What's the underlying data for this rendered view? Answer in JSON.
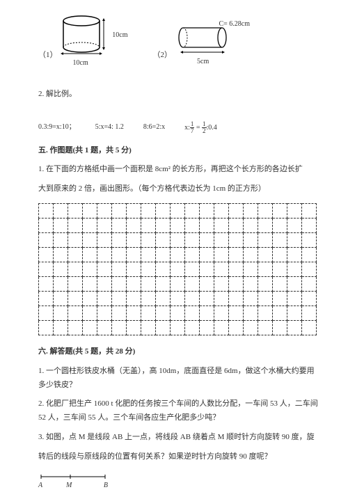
{
  "figures": {
    "fig1_label": "（1）",
    "fig1_height": "10cm",
    "fig1_base": "10cm",
    "fig2_label": "（2）",
    "fig2_circ": "C= 6.28cm",
    "fig2_base": "5cm"
  },
  "q2": "2. 解比例。",
  "equations": {
    "e1": "0.3:9=x:10；",
    "e2": "5:x=4: 1.2",
    "e3": "8:6=2:x",
    "e4_pre": "x:",
    "e4_n1": "1",
    "e4_d1": "7",
    "e4_mid": " = ",
    "e4_n2": "1",
    "e4_d2": "2",
    "e4_post": ":0.4"
  },
  "section5": {
    "title": "五. 作图题(共 1 题，共 5 分)",
    "q1a": "1. 在下面的方格纸中画一个面积是 8cm² 的长方形，再把这个长方形的各边长扩",
    "q1b": "大到原来的 2 倍，画出图形。（每个方格代表边长为 1cm 的正方形）"
  },
  "section6": {
    "title": "六. 解答题(共 5 题，共 28 分)",
    "q1": "1. 一个圆柱形铁皮水桶（无盖），高 10dm，底面直径是 6dm，做这个水桶大约要用多少铁皮？",
    "q2": "2. 化肥厂把生产 1600 t 化肥的任务按三个车间的人数比分配，一车间 53 人，二车间 52 人，三车间 55 人。三个车间各应生产化肥多少吨？",
    "q3a": "3. 如图，点 M 是线段 AB 上一点，将线段 AB 绕着点 M 顺时针方向旋转 90 度，旋",
    "q3b": "转后的线段与原线段的位置有何关系？如果逆时针方向旋转 90 度呢？"
  },
  "lineseg": {
    "A": "A",
    "M": "M",
    "B": "B"
  },
  "grid": {
    "rows": 9,
    "cols": 19
  },
  "colors": {
    "text": "#333333",
    "bg": "#ffffff"
  }
}
